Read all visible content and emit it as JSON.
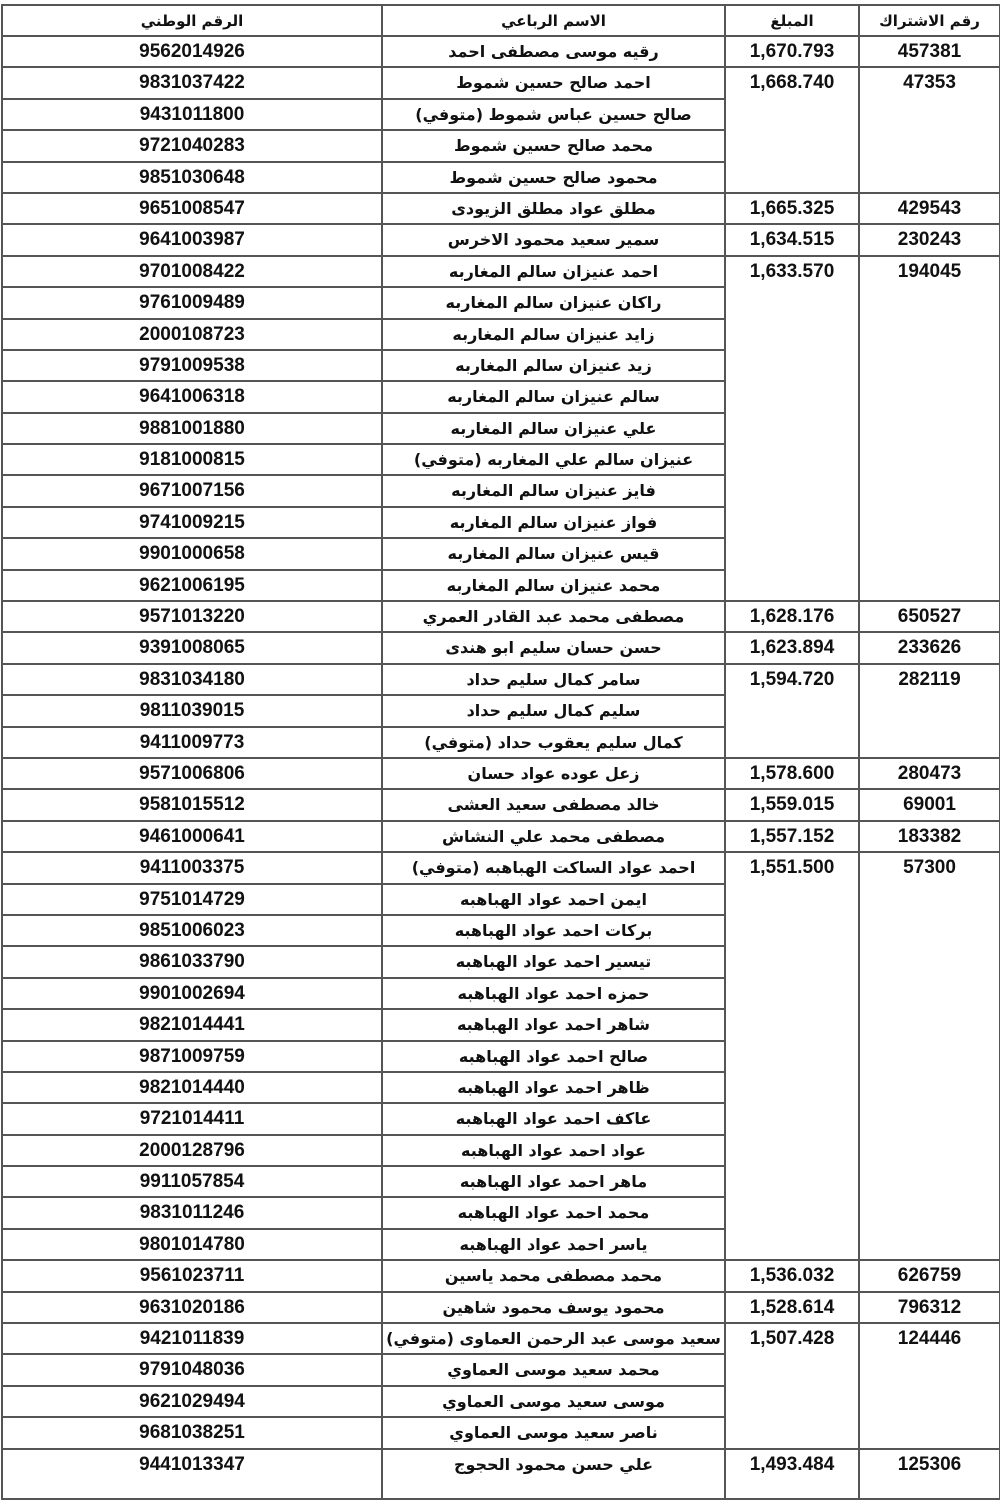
{
  "headers": {
    "national_id": "الرقم الوطني",
    "full_name": "الاسم الرباعي",
    "amount": "المبلغ",
    "subscription_no": "رقم الاشتراك"
  },
  "groups": [
    {
      "subscription": "457381",
      "amount": "1,670.793",
      "members": [
        {
          "name": "رقيه موسى مصطفى احمد",
          "national_id": "9562014926"
        }
      ]
    },
    {
      "subscription": "47353",
      "amount": "1,668.740",
      "members": [
        {
          "name": "احمد صالح حسين شموط",
          "national_id": "9831037422"
        },
        {
          "name": "صالح حسين عباس شموط (متوفي)",
          "national_id": "9431011800"
        },
        {
          "name": "محمد صالح حسين شموط",
          "national_id": "9721040283"
        },
        {
          "name": "محمود صالح حسين شموط",
          "national_id": "9851030648"
        }
      ]
    },
    {
      "subscription": "429543",
      "amount": "1,665.325",
      "members": [
        {
          "name": "مطلق عواد مطلق الزيودى",
          "national_id": "9651008547"
        }
      ]
    },
    {
      "subscription": "230243",
      "amount": "1,634.515",
      "members": [
        {
          "name": "سمير سعيد محمود الاخرس",
          "national_id": "9641003987"
        }
      ]
    },
    {
      "subscription": "194045",
      "amount": "1,633.570",
      "members": [
        {
          "name": "احمد عنيزان سالم المغاربه",
          "national_id": "9701008422"
        },
        {
          "name": "راكان عنيزان سالم المغاربه",
          "national_id": "9761009489"
        },
        {
          "name": "زايد عنيزان سالم المغاربه",
          "national_id": "2000108723"
        },
        {
          "name": "زيد عنيزان سالم المغاربه",
          "national_id": "9791009538"
        },
        {
          "name": "سالم عنيزان سالم المغاربه",
          "national_id": "9641006318"
        },
        {
          "name": "علي عنيزان سالم المغاربه",
          "national_id": "9881001880"
        },
        {
          "name": "عنيزان سالم علي المغاربه (متوفي)",
          "national_id": "9181000815"
        },
        {
          "name": "فايز عنيزان سالم المغاربه",
          "national_id": "9671007156"
        },
        {
          "name": "فواز عنيزان سالم المغاربه",
          "national_id": "9741009215"
        },
        {
          "name": "قيس عنيزان سالم المغاربه",
          "national_id": "9901000658"
        },
        {
          "name": "محمد عنيزان سالم المغاربه",
          "national_id": "9621006195"
        }
      ]
    },
    {
      "subscription": "650527",
      "amount": "1,628.176",
      "members": [
        {
          "name": "مصطفى محمد عبد القادر العمري",
          "national_id": "9571013220"
        }
      ]
    },
    {
      "subscription": "233626",
      "amount": "1,623.894",
      "members": [
        {
          "name": "حسن حسان سليم ابو هندى",
          "national_id": "9391008065"
        }
      ]
    },
    {
      "subscription": "282119",
      "amount": "1,594.720",
      "members": [
        {
          "name": "سامر كمال سليم حداد",
          "national_id": "9831034180"
        },
        {
          "name": "سليم كمال سليم حداد",
          "national_id": "9811039015"
        },
        {
          "name": "كمال سليم يعقوب حداد (متوفي)",
          "national_id": "9411009773"
        }
      ]
    },
    {
      "subscription": "280473",
      "amount": "1,578.600",
      "members": [
        {
          "name": "زعل عوده عواد حسان",
          "national_id": "9571006806"
        }
      ]
    },
    {
      "subscription": "69001",
      "amount": "1,559.015",
      "members": [
        {
          "name": "خالد مصطفى سعيد العشى",
          "national_id": "9581015512"
        }
      ]
    },
    {
      "subscription": "183382",
      "amount": "1,557.152",
      "members": [
        {
          "name": "مصطفى محمد علي النشاش",
          "national_id": "9461000641"
        }
      ]
    },
    {
      "subscription": "57300",
      "amount": "1,551.500",
      "members": [
        {
          "name": "احمد عواد الساكت الهباهبه (متوفي)",
          "national_id": "9411003375"
        },
        {
          "name": "ايمن احمد عواد الهباهبه",
          "national_id": "9751014729"
        },
        {
          "name": "بركات احمد عواد الهباهبه",
          "national_id": "9851006023"
        },
        {
          "name": "تيسير احمد عواد الهباهبه",
          "national_id": "9861033790"
        },
        {
          "name": "حمزه احمد عواد الهباهبه",
          "national_id": "9901002694"
        },
        {
          "name": "شاهر احمد عواد الهباهبه",
          "national_id": "9821014441"
        },
        {
          "name": "صالح احمد عواد الهباهبه",
          "national_id": "9871009759"
        },
        {
          "name": "ظاهر احمد عواد الهباهبه",
          "national_id": "9821014440"
        },
        {
          "name": "عاكف احمد عواد الهباهبه",
          "national_id": "9721014411"
        },
        {
          "name": "عواد احمد عواد الهباهبه",
          "national_id": "2000128796"
        },
        {
          "name": "ماهر احمد عواد الهباهبه",
          "national_id": "9911057854"
        },
        {
          "name": "محمد احمد عواد الهباهبه",
          "national_id": "9831011246"
        },
        {
          "name": "ياسر احمد عواد الهباهبه",
          "national_id": "9801014780"
        }
      ]
    },
    {
      "subscription": "626759",
      "amount": "1,536.032",
      "members": [
        {
          "name": "محمد مصطفى محمد ياسين",
          "national_id": "9561023711"
        }
      ]
    },
    {
      "subscription": "796312",
      "amount": "1,528.614",
      "members": [
        {
          "name": "محمود يوسف محمود شاهين",
          "national_id": "9631020186"
        }
      ]
    },
    {
      "subscription": "124446",
      "amount": "1,507.428",
      "members": [
        {
          "name": "سعيد موسى عبد الرحمن العماوى (متوفي)",
          "national_id": "9421011839"
        },
        {
          "name": "محمد سعيد موسى العماوي",
          "national_id": "9791048036"
        },
        {
          "name": "موسى سعيد موسى العماوي",
          "national_id": "9621029494"
        },
        {
          "name": "ناصر سعيد موسى العماوي",
          "national_id": "9681038251"
        }
      ]
    },
    {
      "subscription": "125306",
      "amount": "1,493.484",
      "members": [
        {
          "name": "علي حسن محمود الحجوج",
          "national_id": "9441013347"
        }
      ]
    }
  ]
}
